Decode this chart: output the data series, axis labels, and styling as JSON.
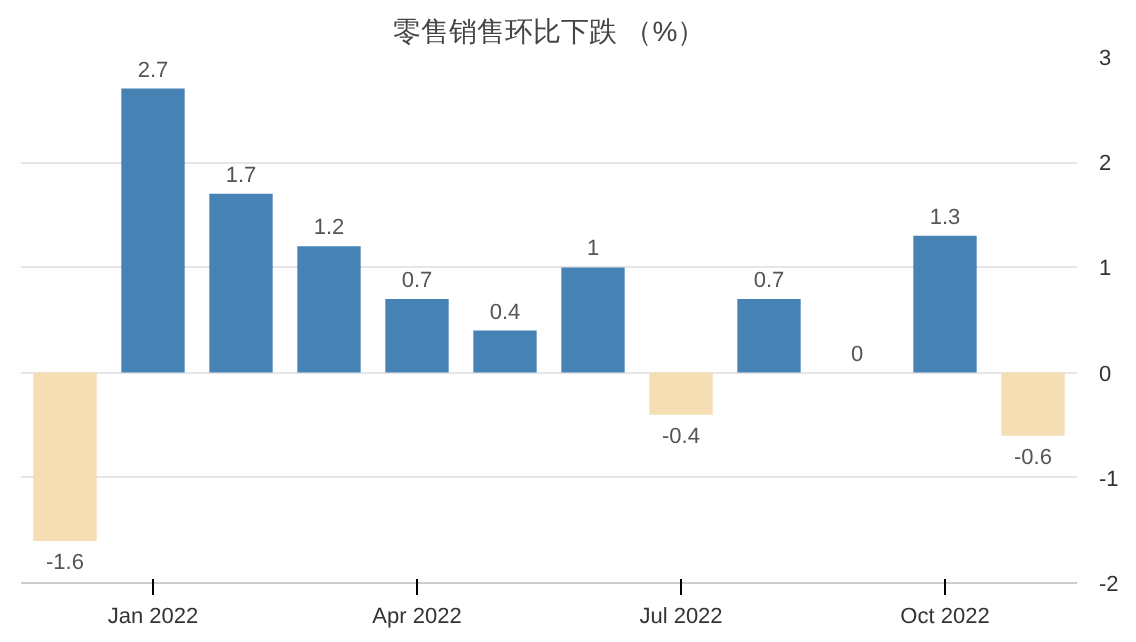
{
  "chart_data": {
    "type": "bar",
    "title": "零售销售环比下跌 （%）",
    "categories": [
      null,
      "Jan 2022",
      null,
      null,
      "Apr 2022",
      null,
      null,
      "Jul 2022",
      null,
      null,
      "Oct 2022",
      null
    ],
    "values": [
      -1.6,
      2.7,
      1.7,
      1.2,
      0.7,
      0.4,
      1,
      -0.4,
      0.7,
      0,
      1.3,
      -0.6
    ],
    "colors": [
      "#f5deb3",
      "#4682b4",
      "#4682b4",
      "#4682b4",
      "#4682b4",
      "#4682b4",
      "#4682b4",
      "#f5deb3",
      "#4682b4",
      "#4682b4",
      "#4682b4",
      "#f5deb3"
    ],
    "ylim": [
      -2,
      3
    ],
    "yticks": [
      -2,
      -1,
      0,
      1,
      2,
      3
    ],
    "grid": "y",
    "data_labels": true
  }
}
